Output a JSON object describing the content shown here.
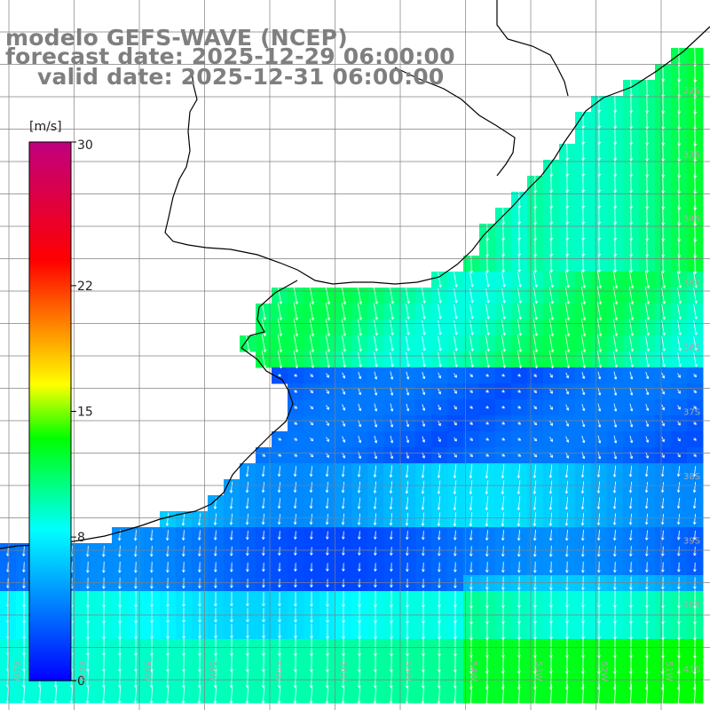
{
  "title": {
    "model": "modelo GEFS-WAVE (NCEP)",
    "forecast": "forecast date: 2025-12-29 06:00:00",
    "valid": "valid date: 2025-12-31 06:00:00"
  },
  "colorbar": {
    "unit": "[m/s]",
    "min": 0,
    "max": 30,
    "ticks": [
      "30",
      "22",
      "15",
      "8",
      "0"
    ],
    "tick_values": [
      30,
      22,
      15,
      8,
      0
    ],
    "colors": [
      "#0000ff",
      "#00ffff",
      "#00ff00",
      "#ffff00",
      "#ff0000",
      "#c00080"
    ]
  },
  "map": {
    "lat_labels": [
      "32S",
      "33S",
      "34S",
      "35S",
      "36S",
      "37S",
      "38S",
      "39S",
      "40S",
      "41S"
    ],
    "lat_values": [
      -32,
      -33,
      -34,
      -35,
      -36,
      -37,
      -38,
      -39,
      -40,
      -41
    ],
    "lon_labels": [
      "61W",
      "60W",
      "59W",
      "58W",
      "57W",
      "56W",
      "55W",
      "54W",
      "53W",
      "52W",
      "51W"
    ],
    "lon_values": [
      -61,
      -60,
      -59,
      -58,
      -57,
      -56,
      -55,
      -54,
      -53,
      -52,
      -51
    ],
    "land_color": "#ffffff",
    "grid_color": "#808080",
    "vector_color": "#ffffff"
  }
}
